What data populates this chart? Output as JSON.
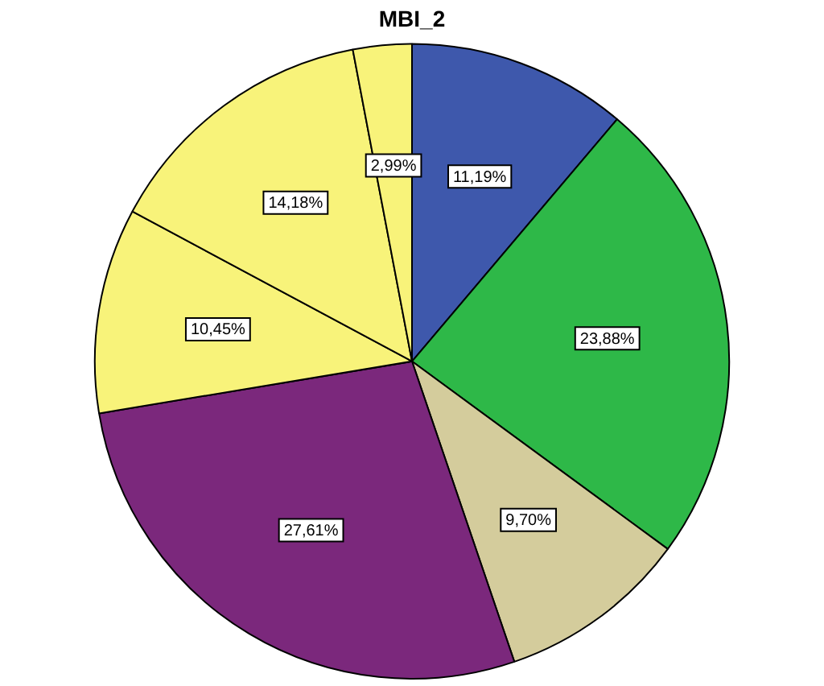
{
  "chart_data": {
    "type": "pie",
    "title": "MBI_2",
    "categories": [
      null,
      null,
      null,
      null,
      null,
      null,
      null
    ],
    "values": [
      11.19,
      23.88,
      9.7,
      27.61,
      10.45,
      14.18,
      2.99
    ],
    "colors": [
      "#3e58ac",
      "#2eb848",
      "#d4cc9c",
      "#7b287c",
      "#f8f37a",
      "#f8f37a",
      "#f8f37a"
    ],
    "value_labels": [
      "11,19%",
      "23,88%",
      "9,70%",
      "27,61%",
      "10,45%",
      "14,18%",
      "2,99%"
    ],
    "legend": false
  }
}
